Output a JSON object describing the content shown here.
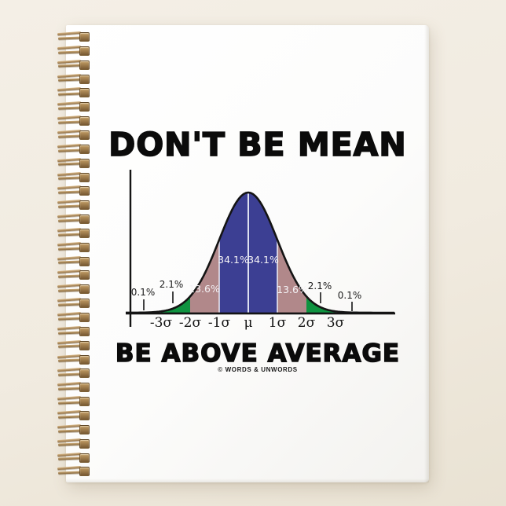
{
  "scene": {
    "background_color": "#f1ebe0",
    "cover_color": "#fcfcfb",
    "spiral_wire_color": "#b3905f"
  },
  "cover": {
    "headline_top": "DON'T BE MEAN",
    "headline_bottom": "BE ABOVE AVERAGE",
    "credit": "© WORDS & UNWORDS"
  },
  "chart_data": {
    "type": "area",
    "subtype": "normal-distribution-bell-curve",
    "x_tick_labels": [
      "-3σ",
      "-2σ",
      "-1σ",
      "μ",
      "1σ",
      "2σ",
      "3σ"
    ],
    "regions": [
      {
        "percent": "0.1%",
        "range": "beyond -3σ (left tail)",
        "fill": "none"
      },
      {
        "percent": "2.1%",
        "range": "-3σ to -2σ",
        "fill": "#0f9340"
      },
      {
        "percent": "13.6%",
        "range": "-2σ to -1σ",
        "fill": "#b1888a"
      },
      {
        "percent": "34.1%",
        "range": "-1σ to μ",
        "fill": "#3c3f93"
      },
      {
        "percent": "34.1%",
        "range": "μ to 1σ",
        "fill": "#3c3f93"
      },
      {
        "percent": "13.6%",
        "range": "1σ to 2σ",
        "fill": "#b1888a"
      },
      {
        "percent": "2.1%",
        "range": "2σ to 3σ",
        "fill": "#0f9340"
      },
      {
        "percent": "0.1%",
        "range": "beyond 3σ (right tail)",
        "fill": "none"
      }
    ],
    "colors": {
      "curve_stroke": "#141414",
      "axis": "#141414",
      "mean_line": "#dde1f0",
      "sigma_separator": "#e8e8f0",
      "label_white": "#f4f2f5",
      "label_black": "#1a1a1a"
    },
    "legend_position": "none",
    "grid": "off"
  }
}
